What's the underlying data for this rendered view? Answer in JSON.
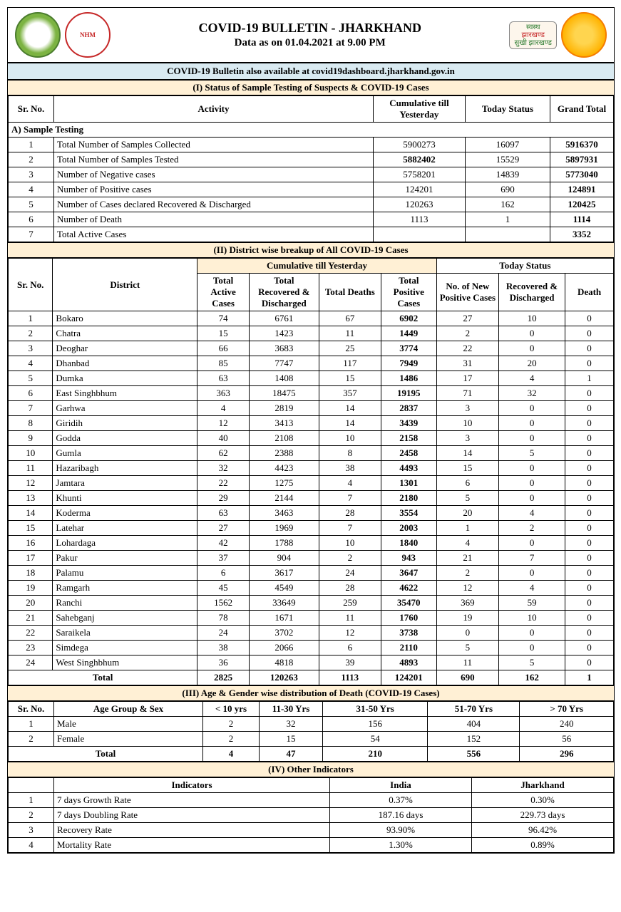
{
  "header": {
    "title": "COVID-19 BULLETIN - JHARKHAND",
    "subtitle": "Data as on 01.04.2021 at 9.00 PM",
    "jh_badge_top": "स्वस्थ",
    "jh_badge_mid": "झारखण्ड",
    "jh_badge_bot": "सुखी झारखण्ड"
  },
  "banner": "COVID-19 Bulletin also available at covid19dashboard.jharkhand.gov.in",
  "section1": {
    "title": "(I) Status of Sample Testing of Suspects & COVID-19 Cases",
    "cols": {
      "sr": "Sr. No.",
      "activity": "Activity",
      "cum": "Cumulative till Yesterday",
      "today": "Today Status",
      "total": "Grand Total"
    },
    "group_a": "A) Sample Testing",
    "rows": [
      {
        "sr": "1",
        "activity": "Total Number of Samples Collected",
        "cum": "5900273",
        "today": "16097",
        "total": "5916370"
      },
      {
        "sr": "2",
        "activity": "Total Number of Samples Tested",
        "cum": "5882402",
        "today": "15529",
        "total": "5897931",
        "bold_cum": true
      },
      {
        "sr": "3",
        "activity": "Number of Negative cases",
        "cum": "5758201",
        "today": "14839",
        "total": "5773040"
      },
      {
        "sr": "4",
        "activity": "Number of Positive cases",
        "cum": "124201",
        "today": "690",
        "total": "124891"
      },
      {
        "sr": "5",
        "activity": "Number of Cases declared Recovered & Discharged",
        "cum": "120263",
        "today": "162",
        "total": "120425"
      },
      {
        "sr": "6",
        "activity": "Number of Death",
        "cum": "1113",
        "today": "1",
        "total": "1114"
      },
      {
        "sr": "7",
        "activity": "Total Active Cases",
        "cum": "",
        "today": "",
        "total": "3352"
      }
    ]
  },
  "section2": {
    "title": "(II) District wise breakup of All COVID-19 Cases",
    "cum_head": "Cumulative till Yesterday",
    "today_head": "Today Status",
    "cols": {
      "sr": "Sr. No.",
      "district": "District",
      "active": "Total Active Cases",
      "rec": "Total Recovered & Discharged",
      "deaths": "Total Deaths",
      "pos": "Total Positive Cases",
      "newpos": "No. of New Positive Cases",
      "newrec": "Recovered & Discharged",
      "newdeath": "Death"
    },
    "rows": [
      {
        "sr": "1",
        "d": "Bokaro",
        "a": "74",
        "r": "6761",
        "de": "67",
        "p": "6902",
        "np": "27",
        "nr": "10",
        "nd": "0"
      },
      {
        "sr": "2",
        "d": "Chatra",
        "a": "15",
        "r": "1423",
        "de": "11",
        "p": "1449",
        "np": "2",
        "nr": "0",
        "nd": "0"
      },
      {
        "sr": "3",
        "d": "Deoghar",
        "a": "66",
        "r": "3683",
        "de": "25",
        "p": "3774",
        "np": "22",
        "nr": "0",
        "nd": "0"
      },
      {
        "sr": "4",
        "d": "Dhanbad",
        "a": "85",
        "r": "7747",
        "de": "117",
        "p": "7949",
        "np": "31",
        "nr": "20",
        "nd": "0"
      },
      {
        "sr": "5",
        "d": "Dumka",
        "a": "63",
        "r": "1408",
        "de": "15",
        "p": "1486",
        "np": "17",
        "nr": "4",
        "nd": "1"
      },
      {
        "sr": "6",
        "d": "East Singhbhum",
        "a": "363",
        "r": "18475",
        "de": "357",
        "p": "19195",
        "np": "71",
        "nr": "32",
        "nd": "0"
      },
      {
        "sr": "7",
        "d": "Garhwa",
        "a": "4",
        "r": "2819",
        "de": "14",
        "p": "2837",
        "np": "3",
        "nr": "0",
        "nd": "0"
      },
      {
        "sr": "8",
        "d": "Giridih",
        "a": "12",
        "r": "3413",
        "de": "14",
        "p": "3439",
        "np": "10",
        "nr": "0",
        "nd": "0"
      },
      {
        "sr": "9",
        "d": "Godda",
        "a": "40",
        "r": "2108",
        "de": "10",
        "p": "2158",
        "np": "3",
        "nr": "0",
        "nd": "0"
      },
      {
        "sr": "10",
        "d": "Gumla",
        "a": "62",
        "r": "2388",
        "de": "8",
        "p": "2458",
        "np": "14",
        "nr": "5",
        "nd": "0"
      },
      {
        "sr": "11",
        "d": "Hazaribagh",
        "a": "32",
        "r": "4423",
        "de": "38",
        "p": "4493",
        "np": "15",
        "nr": "0",
        "nd": "0"
      },
      {
        "sr": "12",
        "d": "Jamtara",
        "a": "22",
        "r": "1275",
        "de": "4",
        "p": "1301",
        "np": "6",
        "nr": "0",
        "nd": "0"
      },
      {
        "sr": "13",
        "d": "Khunti",
        "a": "29",
        "r": "2144",
        "de": "7",
        "p": "2180",
        "np": "5",
        "nr": "0",
        "nd": "0"
      },
      {
        "sr": "14",
        "d": "Koderma",
        "a": "63",
        "r": "3463",
        "de": "28",
        "p": "3554",
        "np": "20",
        "nr": "4",
        "nd": "0"
      },
      {
        "sr": "15",
        "d": "Latehar",
        "a": "27",
        "r": "1969",
        "de": "7",
        "p": "2003",
        "np": "1",
        "nr": "2",
        "nd": "0"
      },
      {
        "sr": "16",
        "d": "Lohardaga",
        "a": "42",
        "r": "1788",
        "de": "10",
        "p": "1840",
        "np": "4",
        "nr": "0",
        "nd": "0"
      },
      {
        "sr": "17",
        "d": "Pakur",
        "a": "37",
        "r": "904",
        "de": "2",
        "p": "943",
        "np": "21",
        "nr": "7",
        "nd": "0"
      },
      {
        "sr": "18",
        "d": "Palamu",
        "a": "6",
        "r": "3617",
        "de": "24",
        "p": "3647",
        "np": "2",
        "nr": "0",
        "nd": "0"
      },
      {
        "sr": "19",
        "d": "Ramgarh",
        "a": "45",
        "r": "4549",
        "de": "28",
        "p": "4622",
        "np": "12",
        "nr": "4",
        "nd": "0"
      },
      {
        "sr": "20",
        "d": "Ranchi",
        "a": "1562",
        "r": "33649",
        "de": "259",
        "p": "35470",
        "np": "369",
        "nr": "59",
        "nd": "0"
      },
      {
        "sr": "21",
        "d": "Sahebganj",
        "a": "78",
        "r": "1671",
        "de": "11",
        "p": "1760",
        "np": "19",
        "nr": "10",
        "nd": "0"
      },
      {
        "sr": "22",
        "d": "Saraikela",
        "a": "24",
        "r": "3702",
        "de": "12",
        "p": "3738",
        "np": "0",
        "nr": "0",
        "nd": "0"
      },
      {
        "sr": "23",
        "d": "Simdega",
        "a": "38",
        "r": "2066",
        "de": "6",
        "p": "2110",
        "np": "5",
        "nr": "0",
        "nd": "0"
      },
      {
        "sr": "24",
        "d": "West Singhbhum",
        "a": "36",
        "r": "4818",
        "de": "39",
        "p": "4893",
        "np": "11",
        "nr": "5",
        "nd": "0"
      }
    ],
    "total": {
      "label": "Total",
      "a": "2825",
      "r": "120263",
      "de": "1113",
      "p": "124201",
      "np": "690",
      "nr": "162",
      "nd": "1"
    }
  },
  "section3": {
    "title": "(III) Age & Gender wise distribution of Death (COVID-19 Cases)",
    "cols": {
      "sr": "Sr. No.",
      "grp": "Age Group & Sex",
      "c1": "< 10 yrs",
      "c2": "11-30 Yrs",
      "c3": "31-50 Yrs",
      "c4": "51-70 Yrs",
      "c5": "> 70 Yrs"
    },
    "rows": [
      {
        "sr": "1",
        "g": "Male",
        "v": [
          "2",
          "32",
          "156",
          "404",
          "240"
        ]
      },
      {
        "sr": "2",
        "g": "Female",
        "v": [
          "2",
          "15",
          "54",
          "152",
          "56"
        ]
      }
    ],
    "total": {
      "label": "Total",
      "v": [
        "4",
        "47",
        "210",
        "556",
        "296"
      ]
    }
  },
  "section4": {
    "title": "(IV)  Other Indicators",
    "cols": {
      "ind": "Indicators",
      "india": "India",
      "jh": "Jharkhand"
    },
    "rows": [
      {
        "sr": "1",
        "i": "7 days Growth Rate",
        "india": "0.37%",
        "jh": "0.30%"
      },
      {
        "sr": "2",
        "i": "7 days Doubling Rate",
        "india": "187.16 days",
        "jh": "229.73 days"
      },
      {
        "sr": "3",
        "i": "Recovery Rate",
        "india": "93.90%",
        "jh": "96.42%"
      },
      {
        "sr": "4",
        "i": "Mortality Rate",
        "india": "1.30%",
        "jh": "0.89%"
      }
    ]
  }
}
